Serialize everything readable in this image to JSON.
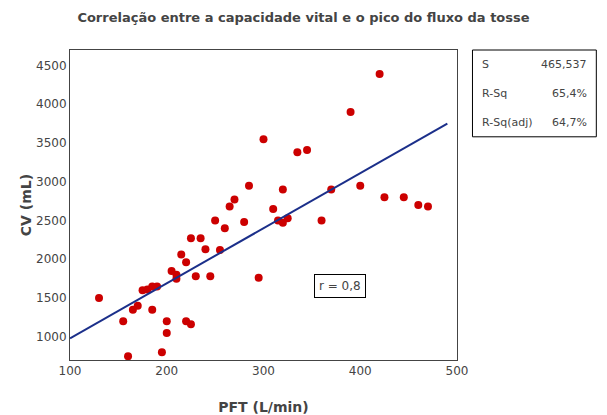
{
  "chart_data": {
    "type": "scatter",
    "title": "Correlação entre a capacidade vital e o pico do fluxo da tosse",
    "xlabel": "PFT (L/min)",
    "ylabel": "CV (mL)",
    "xlim": [
      100,
      500
    ],
    "ylim": [
      700,
      4700
    ],
    "xticks": [
      100,
      200,
      300,
      400,
      500
    ],
    "yticks": [
      1000,
      1500,
      2000,
      2500,
      3000,
      3500,
      4000,
      4500
    ],
    "grid": false,
    "series": [
      {
        "type": "scatter",
        "marker": "circle",
        "color": "#CC0000",
        "x": [
          130,
          155,
          160,
          165,
          170,
          175,
          180,
          185,
          185,
          190,
          195,
          200,
          200,
          205,
          210,
          210,
          215,
          220,
          220,
          225,
          225,
          230,
          235,
          240,
          245,
          250,
          255,
          260,
          265,
          270,
          280,
          285,
          295,
          300,
          310,
          315,
          320,
          320,
          325,
          335,
          345,
          360,
          370,
          390,
          400,
          420,
          425,
          445,
          460,
          470
        ],
        "values": [
          1500,
          1200,
          750,
          1350,
          1400,
          1600,
          1610,
          1350,
          1650,
          1650,
          800,
          1050,
          1200,
          1850,
          1750,
          1800,
          2060,
          1960,
          1200,
          2270,
          1160,
          1780,
          2270,
          2130,
          1780,
          2500,
          2120,
          2400,
          2680,
          2770,
          2480,
          2950,
          1760,
          3550,
          2650,
          2500,
          2900,
          2470,
          2530,
          3380,
          3410,
          2500,
          2900,
          3900,
          2950,
          4390,
          2800,
          2800,
          2700,
          2680
        ]
      },
      {
        "type": "line",
        "line_style": "solid",
        "color": "#1B2F8A",
        "x": [
          100,
          490
        ],
        "values": [
          980,
          3749
        ]
      }
    ],
    "annotations": [
      {
        "text": "r = 0,8"
      }
    ],
    "stats": [
      {
        "label": "S",
        "value": "465,537"
      },
      {
        "label": "R-Sq",
        "value": "65,4%"
      },
      {
        "label": "R-Sq(adj)",
        "value": "64,7%"
      }
    ]
  }
}
